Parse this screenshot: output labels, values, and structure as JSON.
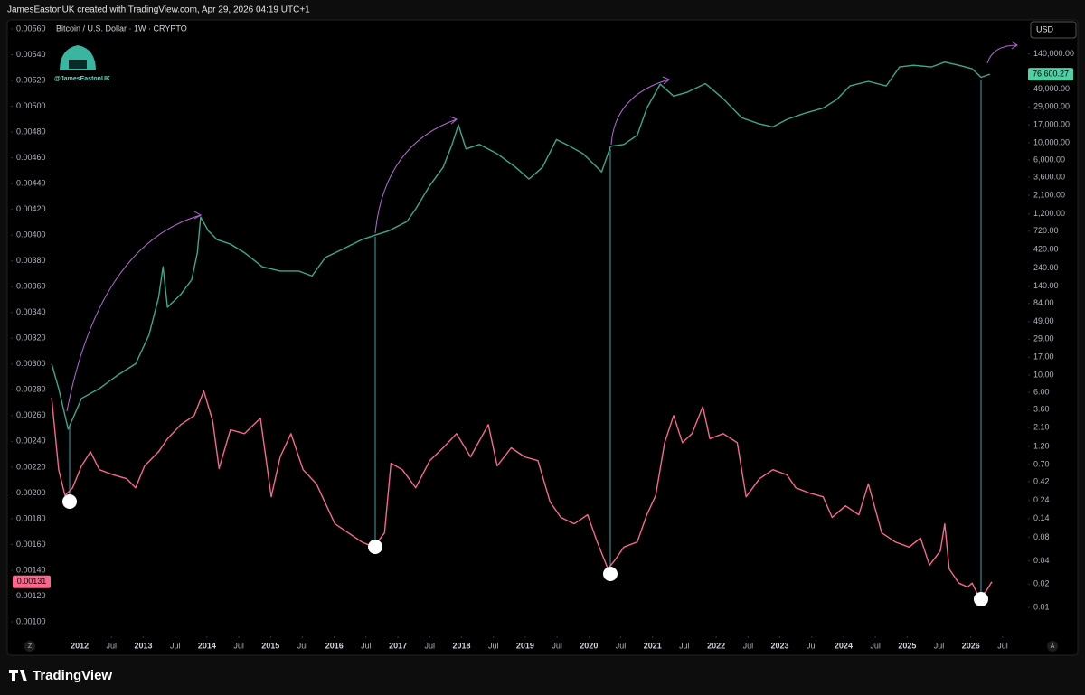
{
  "header": "JamesEastonUK created with TradingView.com, Apr 29, 2026 04:19 UTC+1",
  "watermark": "@JamesEastonUK",
  "currency": "USD",
  "corner_buttons": [
    "Z",
    "A"
  ],
  "footer": "TradingView",
  "chart_data": {
    "type": "line",
    "title": "Bitcoin / U.S. Dollar · 1W · CRYPTO",
    "xlim": [
      2011.53,
      2026.87
    ],
    "xticks": [
      2012,
      {
        "value": 2012.5,
        "label": "Jul"
      },
      2013,
      {
        "value": 2013.5,
        "label": "Jul"
      },
      2014,
      {
        "value": 2014.5,
        "label": "Jul"
      },
      2015,
      {
        "value": 2015.5,
        "label": "Jul"
      },
      2016,
      {
        "value": 2016.5,
        "label": "Jul"
      },
      2017,
      {
        "value": 2017.5,
        "label": "Jul"
      },
      2018,
      {
        "value": 2018.5,
        "label": "Jul"
      },
      2019,
      {
        "value": 2019.5,
        "label": "Jul"
      },
      2020,
      {
        "value": 2020.5,
        "label": "Jul"
      },
      2021,
      {
        "value": 2021.5,
        "label": "Jul"
      },
      2022,
      {
        "value": 2022.5,
        "label": "Jul"
      },
      2023,
      {
        "value": 2023.5,
        "label": "Jul"
      },
      2024,
      {
        "value": 2024.5,
        "label": "Jul"
      },
      2025,
      {
        "value": 2025.5,
        "label": "Jul"
      },
      2026,
      {
        "value": 2026.5,
        "label": "Jul"
      }
    ],
    "ylim": [
      0.000916,
      0.00567
    ],
    "yticks": [
      {
        "value": 0.0056,
        "label": "0.00560"
      },
      {
        "value": 0.0054,
        "label": "0.00540"
      },
      {
        "value": 0.0052,
        "label": "0.00520"
      },
      {
        "value": 0.005,
        "label": "0.00500"
      },
      {
        "value": 0.0048,
        "label": "0.00480"
      },
      {
        "value": 0.0046,
        "label": "0.00460"
      },
      {
        "value": 0.0044,
        "label": "0.00440"
      },
      {
        "value": 0.0042,
        "label": "0.00420"
      },
      {
        "value": 0.004,
        "label": "0.00400"
      },
      {
        "value": 0.0038,
        "label": "0.00380"
      },
      {
        "value": 0.0036,
        "label": "0.00360"
      },
      {
        "value": 0.0034,
        "label": "0.00340"
      },
      {
        "value": 0.0032,
        "label": "0.00320"
      },
      {
        "value": 0.003,
        "label": "0.00300"
      },
      {
        "value": 0.0028,
        "label": "0.00280"
      },
      {
        "value": 0.0026,
        "label": "0.00260"
      },
      {
        "value": 0.0024,
        "label": "0.00240"
      },
      {
        "value": 0.0022,
        "label": "0.00220"
      },
      {
        "value": 0.002,
        "label": "0.00200"
      },
      {
        "value": 0.0018,
        "label": "0.00180"
      },
      {
        "value": 0.0016,
        "label": "0.00160"
      },
      {
        "value": 0.0014,
        "label": "0.00140"
      },
      {
        "value": 0.0012,
        "label": "0.00120"
      },
      {
        "value": 0.001,
        "label": "0.00100"
      }
    ],
    "y2lim": [
      0.00472,
      385500
    ],
    "y2log": true,
    "y2ticks": [
      {
        "value": 140000,
        "label": "140,000.00"
      },
      {
        "value": 49000,
        "label": "49,000.00"
      },
      {
        "value": 29000,
        "label": "29,000.00"
      },
      {
        "value": 17000,
        "label": "17,000.00"
      },
      {
        "value": 10000,
        "label": "10,000.00"
      },
      {
        "value": 6000,
        "label": "6,000.00"
      },
      {
        "value": 3600,
        "label": "3,600.00"
      },
      {
        "value": 2100,
        "label": "2,100.00"
      },
      {
        "value": 1200,
        "label": "1,200.00"
      },
      {
        "value": 720,
        "label": "720.00"
      },
      {
        "value": 420,
        "label": "420.00"
      },
      {
        "value": 240,
        "label": "240.00"
      },
      {
        "value": 140,
        "label": "140.00"
      },
      {
        "value": 84,
        "label": "84.00"
      },
      {
        "value": 49,
        "label": "49.00"
      },
      {
        "value": 29,
        "label": "29.00"
      },
      {
        "value": 17,
        "label": "17.00"
      },
      {
        "value": 10,
        "label": "10.00"
      },
      {
        "value": 6,
        "label": "6.00"
      },
      {
        "value": 3.6,
        "label": "3.60"
      },
      {
        "value": 2.1,
        "label": "2.10"
      },
      {
        "value": 1.2,
        "label": "1.20"
      },
      {
        "value": 0.7,
        "label": "0.70"
      },
      0.42,
      0.24,
      0.14,
      0.08,
      0.04,
      0.02,
      0.01
    ],
    "grid": false,
    "series": [
      {
        "color": "#3aa98f",
        "axis": "y2",
        "last_value_label": "76,600.27",
        "x": [
          2011.56,
          2011.67,
          2011.82,
          2012.03,
          2012.31,
          2012.6,
          2012.88,
          2013.09,
          2013.24,
          2013.31,
          2013.38,
          2013.59,
          2013.76,
          2013.85,
          2013.9,
          2014.02,
          2014.16,
          2014.37,
          2014.59,
          2014.87,
          2015.15,
          2015.44,
          2015.65,
          2015.86,
          2016.15,
          2016.43,
          2016.64,
          2016.86,
          2017.14,
          2017.28,
          2017.5,
          2017.71,
          2017.85,
          2017.95,
          2018.07,
          2018.28,
          2018.56,
          2018.85,
          2019.06,
          2019.27,
          2019.49,
          2019.7,
          2019.91,
          2020.2,
          2020.34,
          2020.55,
          2020.76,
          2020.91,
          2021.12,
          2021.33,
          2021.55,
          2021.83,
          2022.11,
          2022.4,
          2022.68,
          2022.89,
          2023.11,
          2023.39,
          2023.68,
          2023.89,
          2024.1,
          2024.39,
          2024.67,
          2024.88,
          2025.1,
          2025.38,
          2025.59,
          2025.81,
          2026.02,
          2026.16,
          2026.3
        ],
        "values": [
          14,
          6.7,
          2,
          5,
          6.7,
          10,
          14,
          33,
          100,
          250,
          75,
          110,
          170,
          380,
          1100,
          730,
          560,
          490,
          380,
          250,
          220,
          220,
          190,
          330,
          430,
          560,
          640,
          730,
          960,
          1400,
          2800,
          4800,
          9500,
          17000,
          8300,
          9500,
          7200,
          4800,
          3400,
          4800,
          11000,
          9000,
          7200,
          4200,
          9000,
          9500,
          12500,
          28000,
          57000,
          40000,
          45000,
          58000,
          37000,
          21000,
          17500,
          16000,
          20000,
          24000,
          28000,
          36000,
          54000,
          62000,
          54000,
          95000,
          100000,
          95000,
          110000,
          100000,
          90000,
          70000,
          76600.27
        ]
      },
      {
        "color": "#f7688c",
        "x": [
          2011.56,
          2011.67,
          2011.77,
          2011.89,
          2012.03,
          2012.17,
          2012.31,
          2012.53,
          2012.74,
          2012.88,
          2013.02,
          2013.24,
          2013.38,
          2013.59,
          2013.8,
          2013.95,
          2014.09,
          2014.19,
          2014.37,
          2014.59,
          2014.84,
          2015.01,
          2015.15,
          2015.32,
          2015.51,
          2015.72,
          2016.01,
          2016.22,
          2016.43,
          2016.62,
          2016.79,
          2016.89,
          2017.07,
          2017.28,
          2017.5,
          2017.71,
          2017.92,
          2018.14,
          2018.42,
          2018.56,
          2018.78,
          2018.99,
          2019.2,
          2019.39,
          2019.56,
          2019.77,
          2019.98,
          2020.13,
          2020.3,
          2020.41,
          2020.55,
          2020.76,
          2020.91,
          2021.05,
          2021.19,
          2021.33,
          2021.47,
          2021.62,
          2021.79,
          2021.9,
          2022.11,
          2022.33,
          2022.47,
          2022.68,
          2022.89,
          2023.11,
          2023.25,
          2023.46,
          2023.68,
          2023.82,
          2024.03,
          2024.24,
          2024.39,
          2024.6,
          2024.81,
          2025.03,
          2025.21,
          2025.35,
          2025.52,
          2025.59,
          2025.66,
          2025.81,
          2025.95,
          2026.02,
          2026.12,
          2026.23,
          2026.33
        ],
        "values": [
          0.00274,
          0.00218,
          0.00198,
          0.00204,
          0.00221,
          0.00232,
          0.00218,
          0.00214,
          0.00211,
          0.00204,
          0.00221,
          0.00232,
          0.00242,
          0.00253,
          0.0026,
          0.00279,
          0.00256,
          0.00219,
          0.00249,
          0.00246,
          0.00258,
          0.00197,
          0.00228,
          0.00246,
          0.00218,
          0.00207,
          0.00176,
          0.00169,
          0.00162,
          0.00158,
          0.00169,
          0.00223,
          0.00218,
          0.00204,
          0.00225,
          0.00235,
          0.00246,
          0.00228,
          0.00253,
          0.00221,
          0.00235,
          0.00228,
          0.00225,
          0.00193,
          0.00181,
          0.00176,
          0.00183,
          0.00162,
          0.00141,
          0.00148,
          0.00158,
          0.00162,
          0.00183,
          0.00198,
          0.00239,
          0.0026,
          0.00239,
          0.00246,
          0.00267,
          0.00242,
          0.00246,
          0.00239,
          0.00197,
          0.00211,
          0.00218,
          0.00214,
          0.00204,
          0.002,
          0.00197,
          0.00181,
          0.0019,
          0.00183,
          0.00207,
          0.00169,
          0.00162,
          0.00158,
          0.00165,
          0.00144,
          0.00155,
          0.00176,
          0.00141,
          0.0013,
          0.00127,
          0.0013,
          0.0012,
          0.00123,
          0.00131
        ]
      }
    ]
  }
}
